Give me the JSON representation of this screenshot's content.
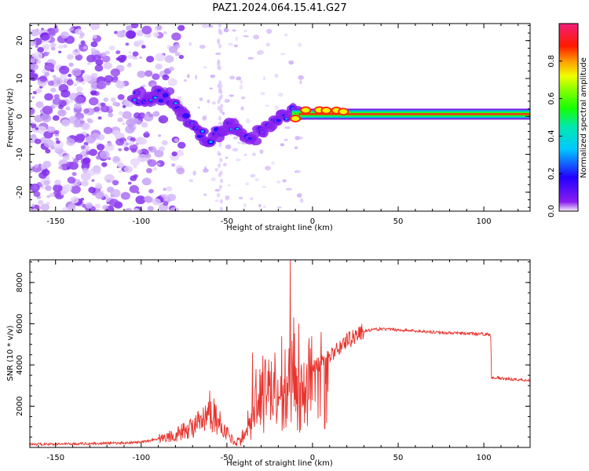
{
  "figure": {
    "title": "PAZ1.2024.064.15.41.G27"
  },
  "chart_data": [
    {
      "type": "heatmap",
      "xlabel": "Height of straight line (km)",
      "ylabel": "Frequency (Hz)",
      "xlim": [
        -165,
        127
      ],
      "ylim": [
        -25,
        24.5
      ],
      "xticks": [
        -150,
        -100,
        -50,
        0,
        50,
        100
      ],
      "yticks": [
        -20,
        -10,
        0,
        10,
        20
      ],
      "colorbar": {
        "label": "Normalized spectral amplitude",
        "range": [
          0,
          1
        ],
        "ticks": [
          0.0,
          0.2,
          0.4,
          0.6,
          0.8
        ],
        "colormap": "gist_ncar-like"
      },
      "ridge": {
        "x": [
          -100,
          -90,
          -80,
          -70,
          -60,
          -50,
          -40,
          -35,
          -30,
          -20,
          -10,
          0,
          10,
          20,
          50,
          100,
          127
        ],
        "frequency": [
          5,
          6,
          3,
          -3,
          -7,
          -2,
          -4,
          -6,
          -4,
          0,
          1,
          0,
          1,
          0,
          1,
          0.5,
          0.5
        ]
      }
    },
    {
      "type": "line",
      "xlabel": "Height of straight line (km)",
      "ylabel": "SNR (10 * v/v)",
      "xlim": [
        -165,
        127
      ],
      "ylim": [
        0,
        9100
      ],
      "xticks": [
        -150,
        -100,
        -50,
        0,
        50,
        100
      ],
      "yticks": [
        2000,
        4000,
        6000,
        8000
      ],
      "series": [
        {
          "color": "#e8332e",
          "envelope": {
            "x": [
              -165,
              -120,
              -100,
              -80,
              -65,
              -58,
              -50,
              -45,
              -40,
              -35,
              -30,
              -25,
              -20,
              -15,
              -12,
              -10,
              -5,
              0,
              10,
              20,
              30,
              40,
              50,
              60,
              80,
              100,
              104,
              104.5,
              110,
              127
            ],
            "y": [
              150,
              200,
              250,
              600,
              1200,
              1600,
              700,
              200,
              700,
              2000,
              2700,
              2900,
              2900,
              3200,
              3400,
              3700,
              3700,
              3900,
              4400,
              5200,
              5650,
              5750,
              5700,
              5650,
              5550,
              5500,
              5450,
              3400,
              3350,
              3250
            ]
          },
          "spikes": [
            {
              "x": -60,
              "y": 2750
            },
            {
              "x": -57,
              "y": 2100
            },
            {
              "x": -35,
              "y": 4600
            },
            {
              "x": -33,
              "y": 3800
            },
            {
              "x": -29,
              "y": 4450
            },
            {
              "x": -22,
              "y": 4600
            },
            {
              "x": -18,
              "y": 5400
            },
            {
              "x": -13,
              "y": 9100
            },
            {
              "x": -11,
              "y": 6300
            },
            {
              "x": -8,
              "y": 6000
            },
            {
              "x": -2,
              "y": 5300
            },
            {
              "x": 5,
              "y": 5600
            }
          ]
        }
      ]
    }
  ]
}
